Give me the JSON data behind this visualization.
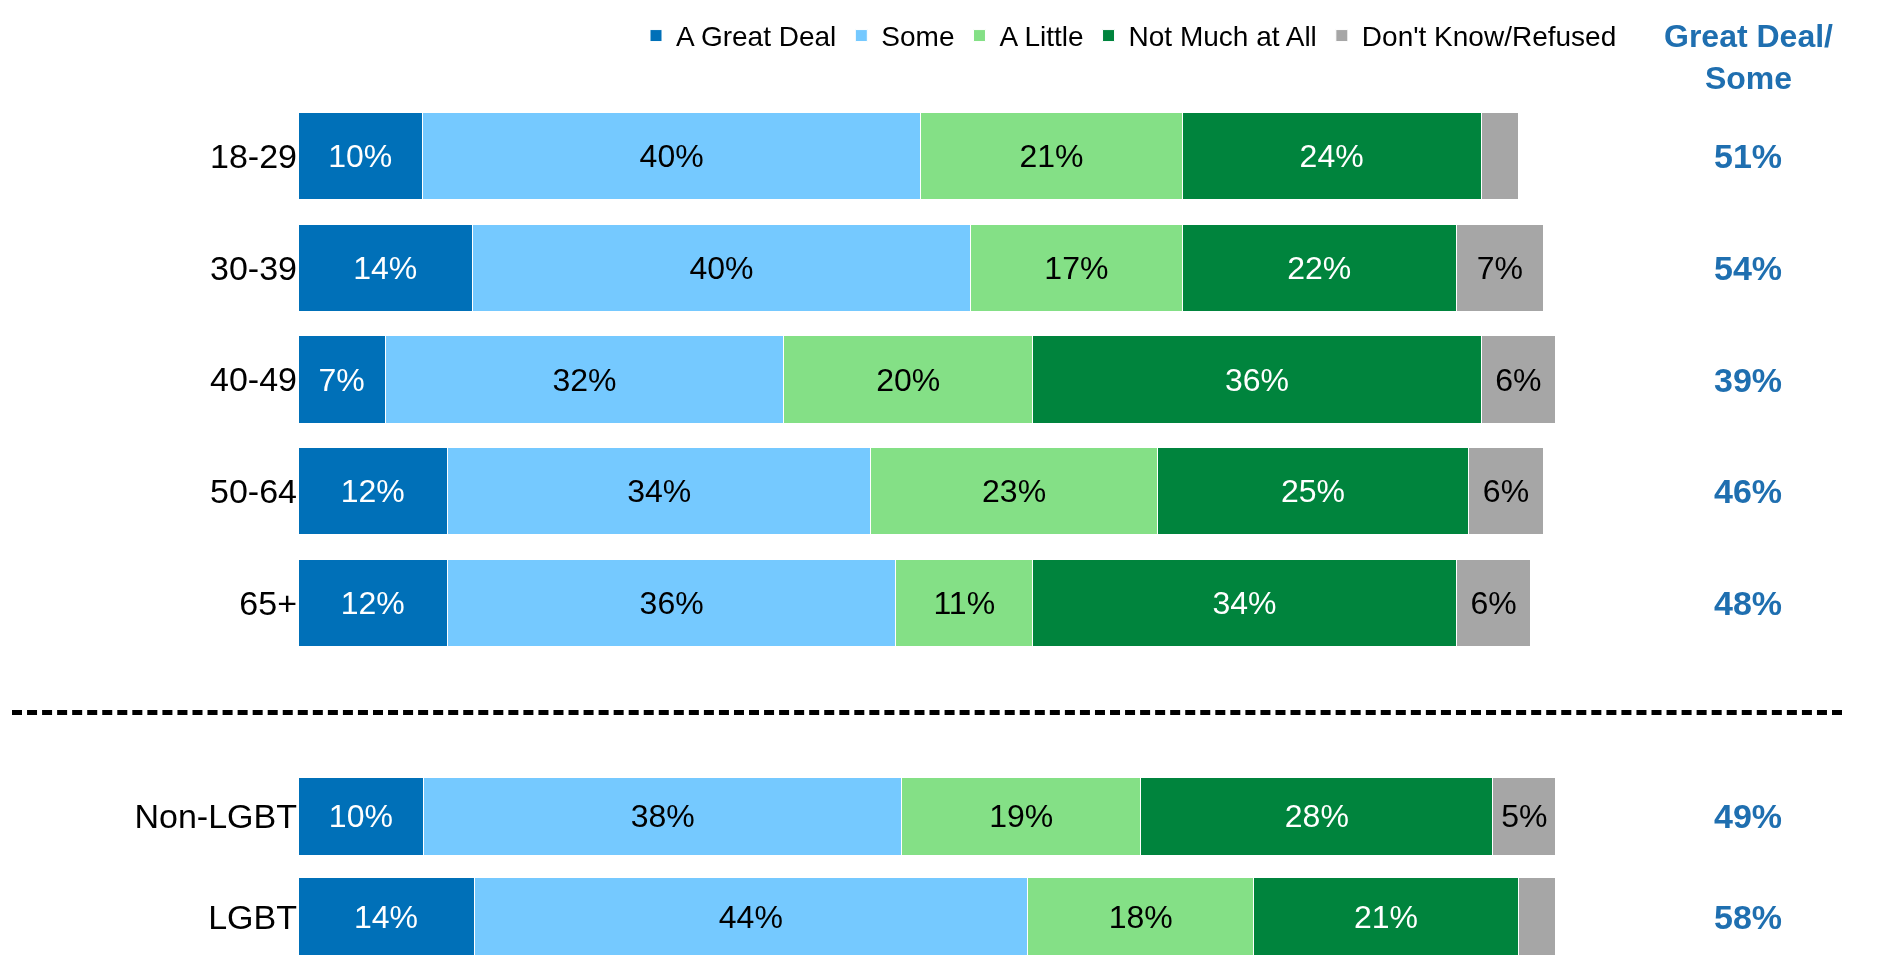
{
  "chart_data": [
    {
      "type": "bar",
      "orientation": "horizontal",
      "stacked": true,
      "legend": "top",
      "tick_labels": "y",
      "categories": [
        "18-29",
        "30-39",
        "40-49",
        "50-64",
        "65+"
      ],
      "annotations": [
        "Great Deal/ Some",
        "51%",
        "54%",
        "39%",
        "46%",
        "48%"
      ],
      "series": [
        {
          "name": "A Great Deal",
          "color": "#0070b8",
          "values": [
            10,
            14,
            7,
            12,
            12
          ],
          "value_labels": [
            "10%",
            "14%",
            "7%",
            "12%",
            "12%"
          ]
        },
        {
          "name": "Some",
          "color": "#75c9ff",
          "values": [
            40,
            40,
            32,
            34,
            36
          ],
          "value_labels": [
            "40%",
            "40%",
            "32%",
            "34%",
            "36%"
          ]
        },
        {
          "name": "A Little",
          "color": "#84e086",
          "values": [
            21,
            17,
            20,
            23,
            11
          ],
          "value_labels": [
            "21%",
            "17%",
            "20%",
            "23%",
            "11%"
          ]
        },
        {
          "name": "Not Much at All",
          "color": "#00843d",
          "values": [
            24,
            22,
            36,
            25,
            34
          ],
          "value_labels": [
            "24%",
            "22%",
            "36%",
            "25%",
            "34%"
          ]
        },
        {
          "name": "Don't Know/Refused",
          "color": "#a6a6a6",
          "values": [
            3,
            7,
            6,
            6,
            6
          ],
          "value_labels": [
            null,
            "7%",
            "6%",
            "6%",
            "6%"
          ]
        }
      ]
    },
    {
      "type": "bar",
      "orientation": "horizontal",
      "stacked": true,
      "legend": false,
      "tick_labels": "y",
      "categories": [
        "Non-LGBT",
        "LGBT"
      ],
      "annotations": [
        "49%",
        "58%"
      ],
      "series": [
        {
          "color": "#0070b8",
          "values": [
            10,
            14
          ],
          "value_labels": [
            "10%",
            "14%"
          ]
        },
        {
          "color": "#75c9ff",
          "values": [
            38,
            44
          ],
          "value_labels": [
            "38%",
            "44%"
          ]
        },
        {
          "color": "#84e086",
          "values": [
            19,
            18
          ],
          "value_labels": [
            "19%",
            "18%"
          ]
        },
        {
          "color": "#00843d",
          "values": [
            28,
            21
          ],
          "value_labels": [
            "28%",
            "21%"
          ]
        },
        {
          "color": "#a6a6a6",
          "values": [
            5,
            3
          ],
          "value_labels": [
            "5%",
            null
          ]
        }
      ]
    }
  ]
}
